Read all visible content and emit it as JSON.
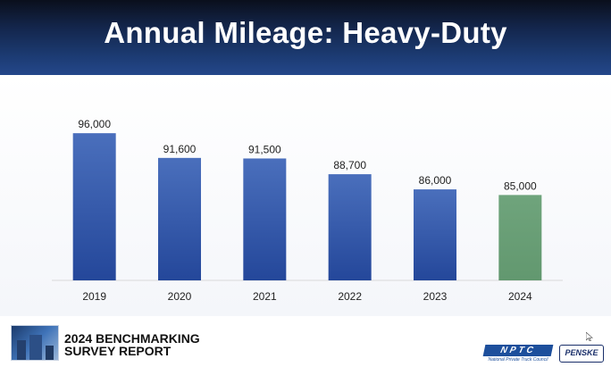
{
  "slide": {
    "title": "Annual Mileage: Heavy-Duty"
  },
  "chart_data": {
    "type": "bar",
    "title": "Annual Mileage: Heavy-Duty",
    "categories": [
      "2019",
      "2020",
      "2021",
      "2022",
      "2023",
      "2024"
    ],
    "values": [
      96000,
      91600,
      91500,
      88700,
      86000,
      85000
    ],
    "data_labels": [
      "96,000",
      "91,600",
      "91,500",
      "88,700",
      "86,000",
      "85,000"
    ],
    "xlabel": "",
    "ylabel": "",
    "ylim": [
      69800,
      100000
    ],
    "grid": false,
    "legend": "none",
    "colors": {
      "default_bar": "#2f56a6",
      "highlight_bar": "#6a9f78"
    },
    "highlight_index": 5
  },
  "footer": {
    "report_title": "2024 BENCHMARKING SURVEY REPORT",
    "nptc_logo_text": "NPTC",
    "nptc_logo_subtext": "National Private Truck Council",
    "penske_logo_text": "PENSKE"
  }
}
